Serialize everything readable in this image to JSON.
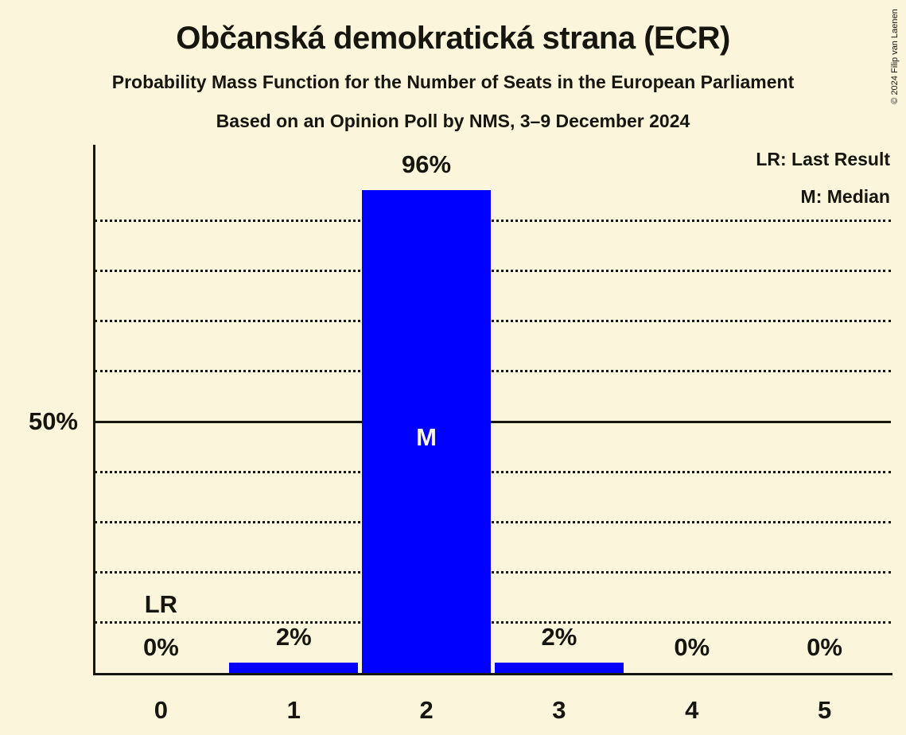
{
  "background_color": "#fbf5dc",
  "text_color": "#16160f",
  "chart_data": {
    "type": "bar",
    "title": "Občanská demokratická strana (ECR)",
    "subtitle": "Probability Mass Function for the Number of Seats in the European Parliament",
    "source_line": "Based on an Opinion Poll by NMS, 3–9 December 2024",
    "copyright": "© 2024 Filip van Laenen",
    "categories": [
      "0",
      "1",
      "2",
      "3",
      "4",
      "5"
    ],
    "values": [
      0,
      2,
      96,
      2,
      0,
      0
    ],
    "bar_labels": [
      "0%",
      "2%",
      "96%",
      "2%",
      "0%",
      "0%"
    ],
    "bar_color": "#0000ff",
    "in_bar_text_color": "#faf6e6",
    "ylim": [
      0,
      105
    ],
    "ytick": {
      "value": 50,
      "label": "50%"
    },
    "gridlines_percent": [
      10,
      20,
      30,
      40,
      60,
      70,
      80,
      90
    ],
    "solid_line_percent": 50,
    "grid_style": "dotted",
    "legend_position": "top-right",
    "legend": [
      "LR: Last Result",
      "M: Median"
    ],
    "last_result": {
      "category": "0",
      "marker": "LR"
    },
    "median": {
      "category": "2",
      "marker": "M"
    }
  }
}
